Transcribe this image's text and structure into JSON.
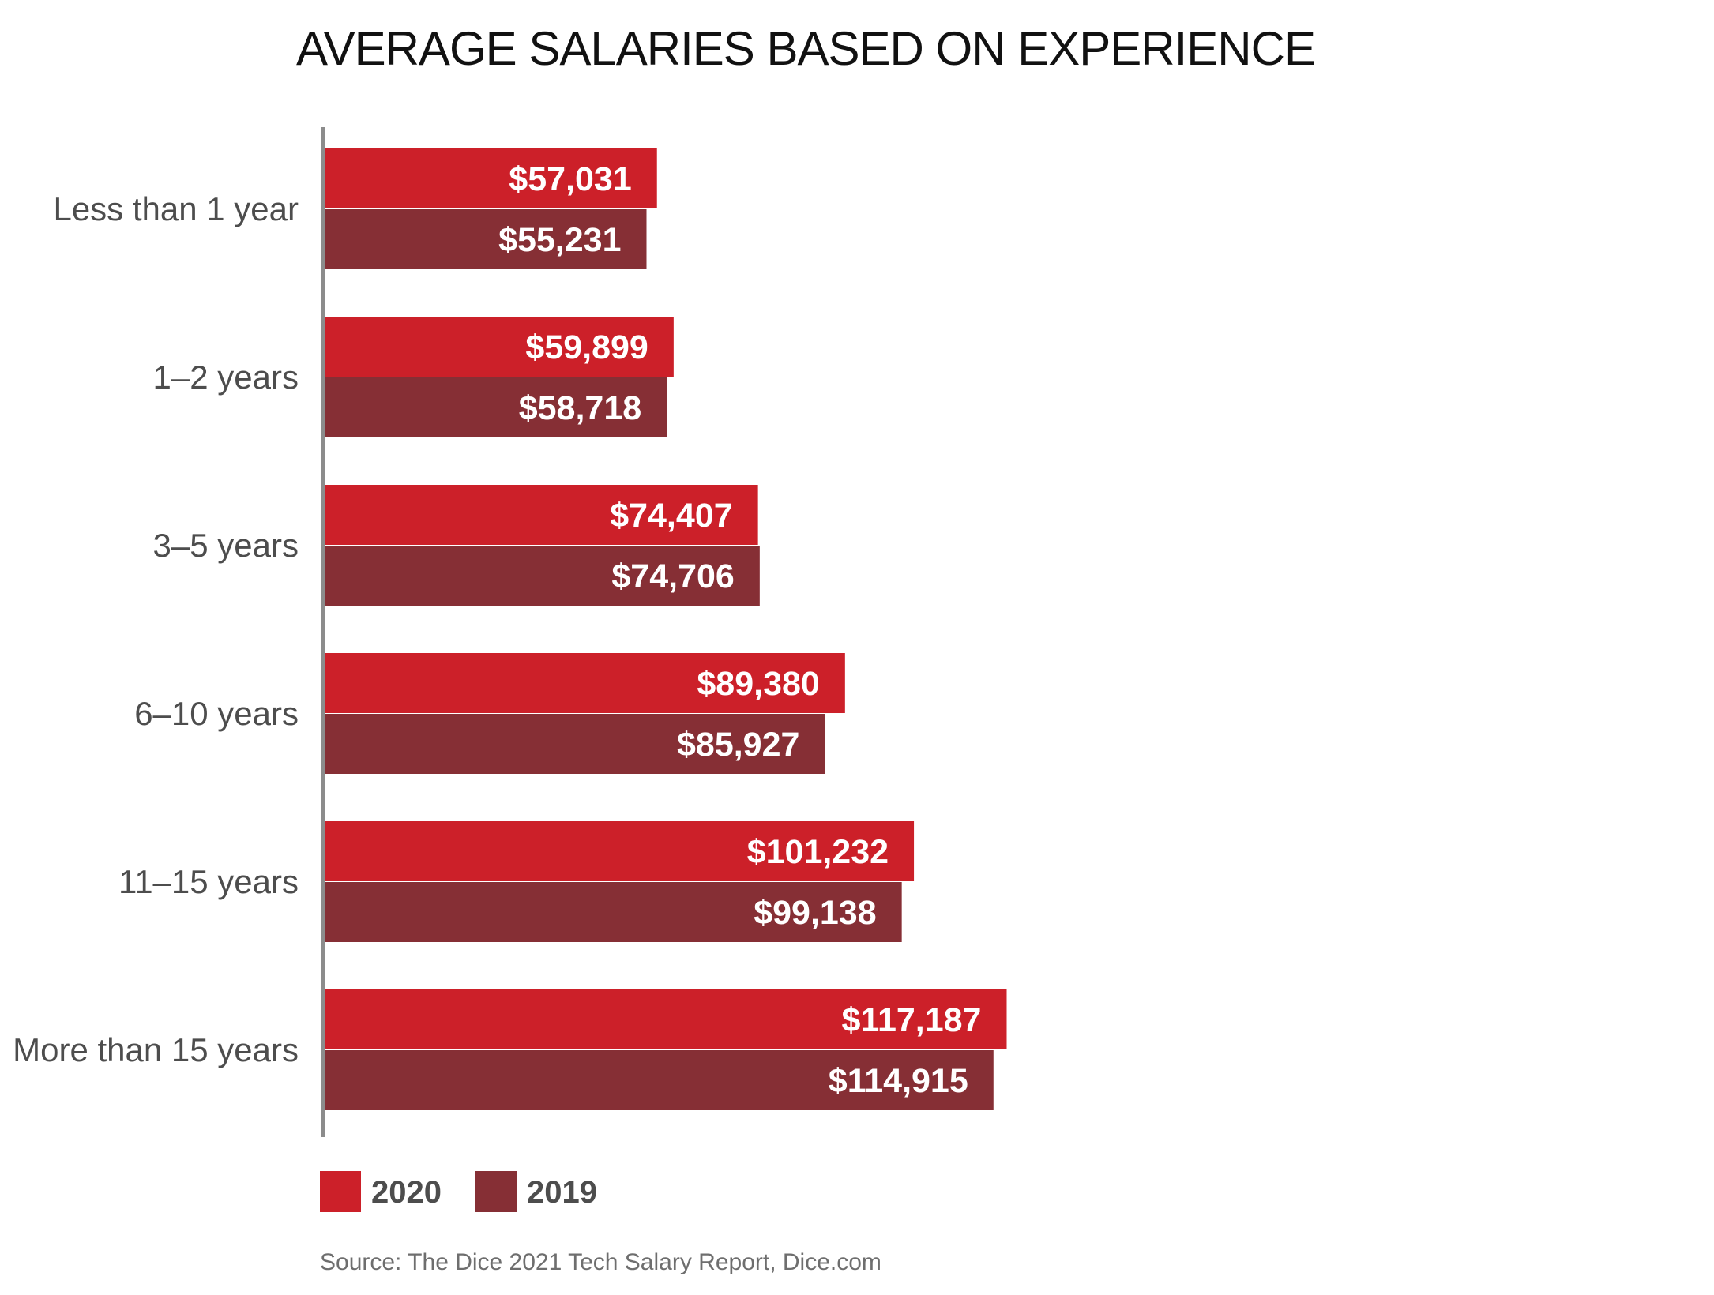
{
  "chart_data": {
    "type": "bar",
    "orientation": "horizontal",
    "title": "AVERAGE SALARIES BASED ON EXPERIENCE",
    "categories": [
      "Less than 1 year",
      "1–2 years",
      "3–5 years",
      "6–10 years",
      "11–15 years",
      "More than 15 years"
    ],
    "series": [
      {
        "name": "2020",
        "color": "#cc2029",
        "values": [
          57031,
          59899,
          74407,
          89380,
          101232,
          117187
        ],
        "labels": [
          "$57,031",
          "$59,899",
          "$74,407",
          "$89,380",
          "$101,232",
          "$117,187"
        ]
      },
      {
        "name": "2019",
        "color": "#862f35",
        "values": [
          55231,
          58718,
          74706,
          85927,
          99138,
          114915
        ],
        "labels": [
          "$55,231",
          "$58,718",
          "$74,706",
          "$85,927",
          "$99,138",
          "$114,915"
        ]
      }
    ],
    "legend_position": "bottom-left",
    "grid": false,
    "source": "Source: The Dice 2021 Tech Salary Report, Dice.com"
  }
}
